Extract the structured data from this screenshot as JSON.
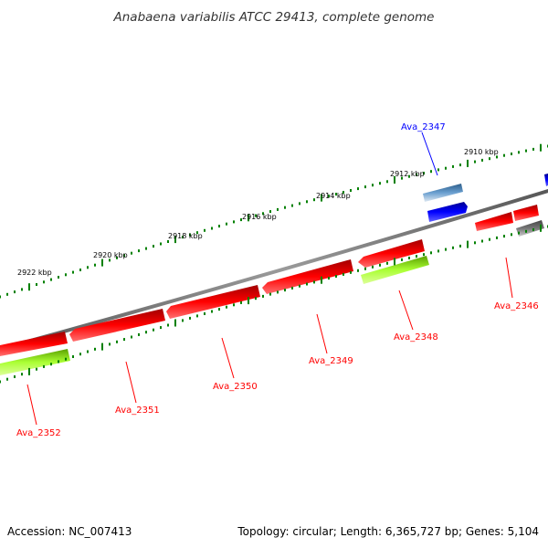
{
  "title": "Anabaena variabilis ATCC 29413, complete genome",
  "footer": {
    "accession": "Accession: NC_007413",
    "summary": "Topology: circular; Length: 6,365,727 bp; Genes: 5,104"
  },
  "ticks": [
    {
      "label": "2910 kbp"
    },
    {
      "label": "2912 kbp"
    },
    {
      "label": "2914 kbp"
    },
    {
      "label": "2916 kbp"
    },
    {
      "label": "2918 kbp"
    },
    {
      "label": "2920 kbp"
    },
    {
      "label": "2922 kbp"
    }
  ],
  "genes": [
    {
      "name": "Ava_2346",
      "strand": "minus",
      "color": "#ff0000"
    },
    {
      "name": "Ava_2347",
      "strand": "plus",
      "color": "#0000ff"
    },
    {
      "name": "Ava_2348",
      "strand": "minus",
      "color": "#ff0000"
    },
    {
      "name": "Ava_2349",
      "strand": "minus",
      "color": "#ff0000"
    },
    {
      "name": "Ava_2350",
      "strand": "minus",
      "color": "#ff0000"
    },
    {
      "name": "Ava_2351",
      "strand": "minus",
      "color": "#ff0000"
    },
    {
      "name": "Ava_2352",
      "strand": "minus",
      "color": "#ff0000"
    }
  ],
  "colors": {
    "gene_red": "#ff0000",
    "gene_blue": "#0000ff",
    "cds_green": "#99ff33",
    "tick_green": "#008000",
    "backbone_gray": "#808080",
    "steelblue": "#4682b4"
  }
}
